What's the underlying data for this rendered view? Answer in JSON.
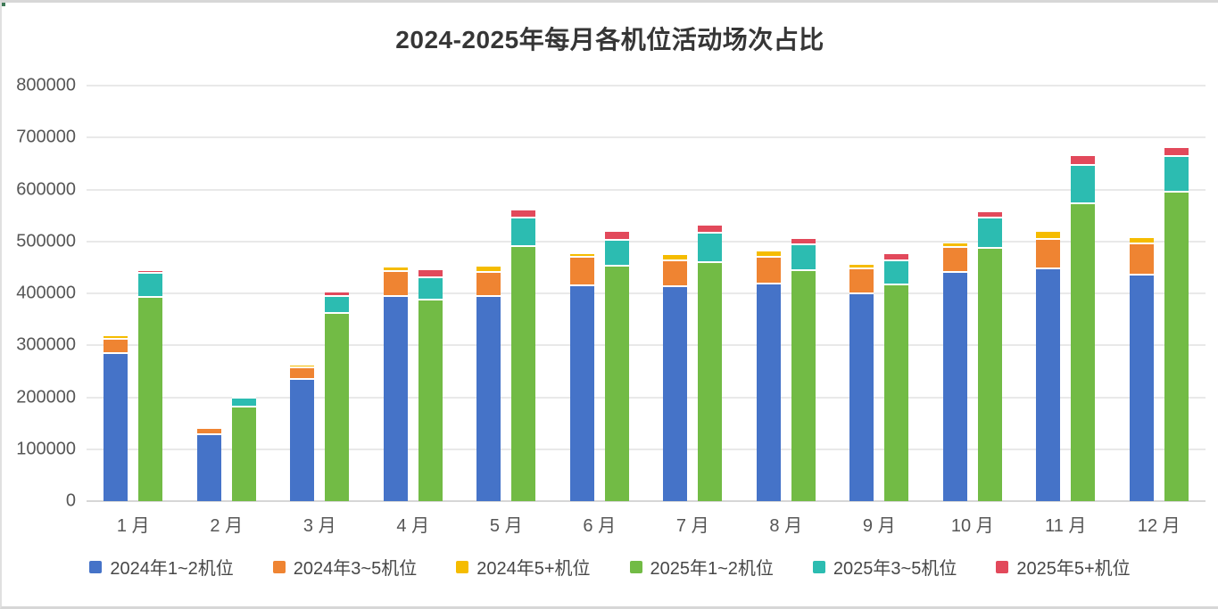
{
  "chart_data": {
    "type": "bar",
    "stacked": true,
    "title": "2024-2025年每月各机位活动场次占比",
    "categories": [
      "1 月",
      "2 月",
      "3 月",
      "4 月",
      "5 月",
      "6 月",
      "7 月",
      "8 月",
      "9 月",
      "10 月",
      "11 月",
      "12 月"
    ],
    "ylim": [
      0,
      800000
    ],
    "ytick_labels": [
      "0",
      "100000",
      "200000",
      "300000",
      "400000",
      "500000",
      "600000",
      "700000",
      "800000"
    ],
    "grid": true,
    "legend_position": "bottom",
    "groups": [
      "2024",
      "2025"
    ],
    "series": [
      {
        "name": "2024年1~2机位",
        "group": "2024",
        "color": "#4573C8",
        "values": [
          283000,
          127000,
          233000,
          393000,
          394000,
          413000,
          412000,
          417000,
          398000,
          440000,
          446000,
          435000
        ]
      },
      {
        "name": "2024年3~5机位",
        "group": "2024",
        "color": "#EF8432",
        "values": [
          28000,
          12000,
          22000,
          48000,
          46000,
          55000,
          50000,
          52000,
          48000,
          47000,
          57000,
          59000
        ]
      },
      {
        "name": "2024年5+机位",
        "group": "2024",
        "color": "#F5BC00",
        "values": [
          6000,
          2000,
          6000,
          8000,
          11000,
          8000,
          11000,
          11000,
          9000,
          10000,
          16000,
          13000
        ]
      },
      {
        "name": "2025年1~2机位",
        "group": "2025",
        "color": "#72BB45",
        "values": [
          391000,
          180000,
          360000,
          386000,
          490000,
          451000,
          458000,
          443000,
          415000,
          486000,
          572000,
          594000
        ]
      },
      {
        "name": "2025年3~5机位",
        "group": "2025",
        "color": "#2CBCB1",
        "values": [
          46000,
          17000,
          33000,
          44000,
          54000,
          51000,
          57000,
          50000,
          47000,
          58000,
          73000,
          68000
        ]
      },
      {
        "name": "2025年5+机位",
        "group": "2025",
        "color": "#E2495B",
        "values": [
          6000,
          4000,
          9000,
          14000,
          15000,
          16000,
          16000,
          12000,
          14000,
          12000,
          19000,
          18000
        ]
      }
    ]
  },
  "colors": {
    "grid": "#e9e9e9",
    "axis": "#d6d6d6",
    "text": "#565656",
    "title": "#363636"
  }
}
